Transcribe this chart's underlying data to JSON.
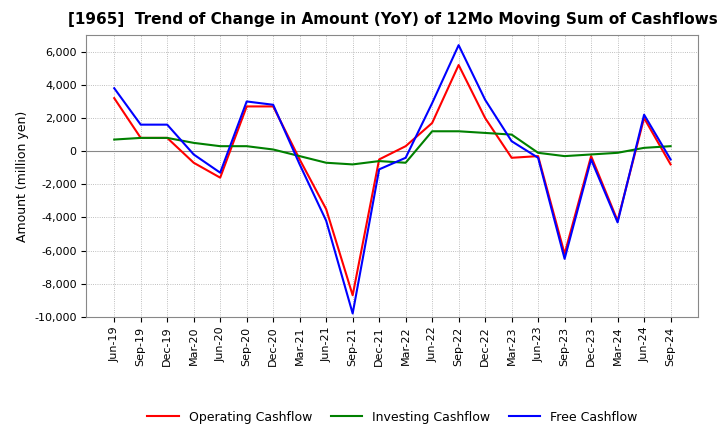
{
  "title": "[1965]  Trend of Change in Amount (YoY) of 12Mo Moving Sum of Cashflows",
  "ylabel": "Amount (million yen)",
  "ylim": [
    -10000,
    7000
  ],
  "yticks": [
    -10000,
    -8000,
    -6000,
    -4000,
    -2000,
    0,
    2000,
    4000,
    6000
  ],
  "x_labels": [
    "Jun-19",
    "Sep-19",
    "Dec-19",
    "Mar-20",
    "Jun-20",
    "Sep-20",
    "Dec-20",
    "Mar-21",
    "Jun-21",
    "Sep-21",
    "Dec-21",
    "Mar-22",
    "Jun-22",
    "Sep-22",
    "Dec-22",
    "Mar-23",
    "Jun-23",
    "Sep-23",
    "Dec-23",
    "Mar-24",
    "Jun-24",
    "Sep-24"
  ],
  "operating": [
    3200,
    800,
    800,
    -700,
    -1600,
    2700,
    2700,
    -500,
    -3500,
    -8700,
    -500,
    300,
    1700,
    5200,
    2000,
    -400,
    -300,
    -6200,
    -300,
    -4200,
    2000,
    -800
  ],
  "investing": [
    700,
    800,
    800,
    500,
    300,
    300,
    100,
    -300,
    -700,
    -800,
    -600,
    -700,
    1200,
    1200,
    1100,
    1000,
    -100,
    -300,
    -200,
    -100,
    200,
    300
  ],
  "free": [
    3800,
    1600,
    1600,
    -200,
    -1300,
    3000,
    2800,
    -800,
    -4200,
    -9800,
    -1100,
    -400,
    2900,
    6400,
    3100,
    600,
    -400,
    -6500,
    -500,
    -4300,
    2200,
    -500
  ],
  "op_color": "#ff0000",
  "inv_color": "#008000",
  "free_color": "#0000ff",
  "line_width": 1.5,
  "grid_color": "#aaaaaa",
  "bg_color": "#ffffff",
  "title_fontsize": 11,
  "label_fontsize": 9,
  "tick_fontsize": 8
}
